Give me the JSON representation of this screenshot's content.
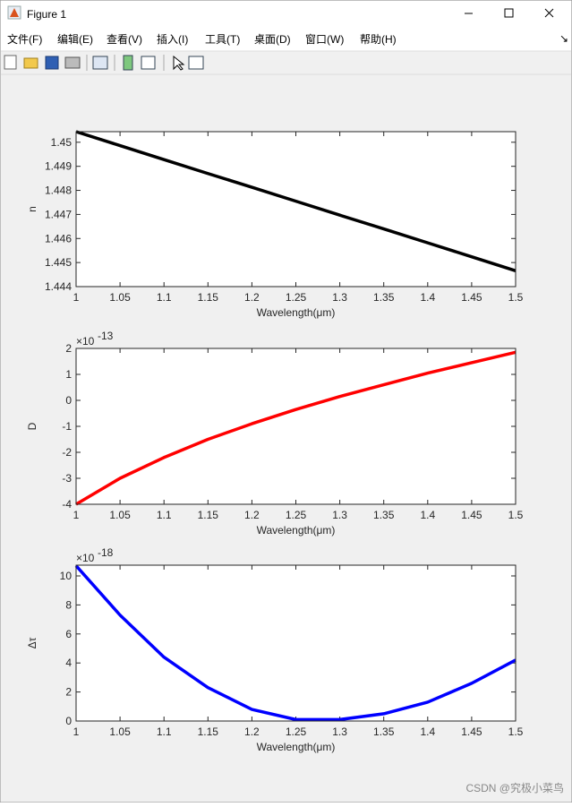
{
  "window": {
    "title": "Figure 1",
    "menu": [
      "文件(F)",
      "编辑(E)",
      "查看(V)",
      "插入(I)",
      "工具(T)",
      "桌面(D)",
      "窗口(W)",
      "帮助(H)"
    ],
    "watermark": "CSDN @究极小菜鸟"
  },
  "chart_data": [
    {
      "type": "line",
      "xlabel": "Wavelength(μm)",
      "ylabel": "n",
      "color": "#000000",
      "x": [
        1,
        1.05,
        1.1,
        1.15,
        1.2,
        1.25,
        1.3,
        1.35,
        1.4,
        1.45,
        1.5
      ],
      "values": [
        1.45044,
        1.44986,
        1.44928,
        1.4487,
        1.44813,
        1.44755,
        1.44697,
        1.4464,
        1.44582,
        1.44524,
        1.44466
      ],
      "xlim": [
        1,
        1.5
      ],
      "xticks": [
        1,
        1.05,
        1.1,
        1.15,
        1.2,
        1.25,
        1.3,
        1.35,
        1.4,
        1.45,
        1.5
      ],
      "ylim": [
        1.444,
        1.45044
      ],
      "yticks": [
        1.444,
        1.445,
        1.446,
        1.447,
        1.448,
        1.449,
        1.45
      ]
    },
    {
      "type": "line",
      "xlabel": "Wavelength(μm)",
      "ylabel": "D",
      "color": "#ff0000",
      "yexponent": {
        "base": "×10",
        "power": "-13"
      },
      "x": [
        1,
        1.05,
        1.1,
        1.15,
        1.2,
        1.25,
        1.3,
        1.35,
        1.4,
        1.45,
        1.5
      ],
      "values": [
        -4.0,
        -3.0,
        -2.2,
        -1.5,
        -0.9,
        -0.35,
        0.15,
        0.6,
        1.05,
        1.45,
        1.85
      ],
      "xlim": [
        1,
        1.5
      ],
      "xticks": [
        1,
        1.05,
        1.1,
        1.15,
        1.2,
        1.25,
        1.3,
        1.35,
        1.4,
        1.45,
        1.5
      ],
      "ylim": [
        -4,
        2
      ],
      "yticks": [
        -4,
        -3,
        -2,
        -1,
        0,
        1,
        2
      ]
    },
    {
      "type": "line",
      "xlabel": "Wavelength(μm)",
      "ylabel": "Δτ",
      "color": "#0000ff",
      "yexponent": {
        "base": "×10",
        "power": "-18"
      },
      "x": [
        1,
        1.05,
        1.1,
        1.15,
        1.2,
        1.25,
        1.3,
        1.35,
        1.4,
        1.45,
        1.5
      ],
      "values": [
        10.7,
        7.3,
        4.4,
        2.3,
        0.8,
        0.1,
        0.1,
        0.5,
        1.3,
        2.6,
        4.2
      ],
      "xlim": [
        1,
        1.5
      ],
      "xticks": [
        1,
        1.05,
        1.1,
        1.15,
        1.2,
        1.25,
        1.3,
        1.35,
        1.4,
        1.45,
        1.5
      ],
      "ylim": [
        0,
        10.74
      ],
      "yticks": [
        0,
        2,
        4,
        6,
        8,
        10
      ]
    }
  ]
}
